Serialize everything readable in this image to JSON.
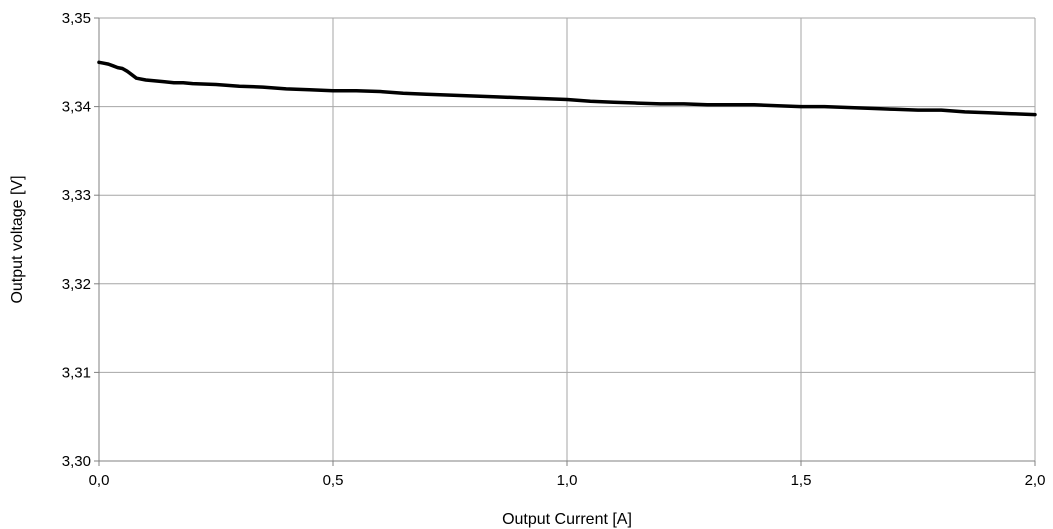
{
  "chart_data": {
    "type": "line",
    "title": "",
    "xlabel": "Output Current [A]",
    "ylabel": "Output voltage [V]",
    "xlim": [
      0.0,
      2.0
    ],
    "ylim": [
      3.3,
      3.35
    ],
    "x_ticks": [
      0.0,
      0.5,
      1.0,
      1.5,
      2.0
    ],
    "x_tick_labels": [
      "0,0",
      "0,5",
      "1,0",
      "1,5",
      "2,0"
    ],
    "y_ticks": [
      3.3,
      3.31,
      3.32,
      3.33,
      3.34,
      3.35
    ],
    "y_tick_labels": [
      "3,30",
      "3,31",
      "3,32",
      "3,33",
      "3,34",
      "3,35"
    ],
    "grid": true,
    "legend": "none",
    "series": [
      {
        "color": "#000000",
        "x": [
          0.0,
          0.01,
          0.02,
          0.03,
          0.04,
          0.05,
          0.06,
          0.07,
          0.08,
          0.1,
          0.12,
          0.14,
          0.16,
          0.18,
          0.2,
          0.25,
          0.3,
          0.35,
          0.4,
          0.45,
          0.5,
          0.55,
          0.6,
          0.65,
          0.7,
          0.75,
          0.8,
          0.85,
          0.9,
          0.95,
          1.0,
          1.05,
          1.1,
          1.15,
          1.2,
          1.25,
          1.3,
          1.35,
          1.4,
          1.45,
          1.5,
          1.55,
          1.6,
          1.65,
          1.7,
          1.75,
          1.8,
          1.85,
          1.9,
          1.95,
          2.0
        ],
        "y": [
          3.345,
          3.3449,
          3.3448,
          3.3446,
          3.3444,
          3.3443,
          3.344,
          3.3436,
          3.3432,
          3.343,
          3.3429,
          3.3428,
          3.3427,
          3.3427,
          3.3426,
          3.3425,
          3.3423,
          3.3422,
          3.342,
          3.3419,
          3.3418,
          3.3418,
          3.3417,
          3.3415,
          3.3414,
          3.3413,
          3.3412,
          3.3411,
          3.341,
          3.3409,
          3.3408,
          3.3406,
          3.3405,
          3.3404,
          3.3403,
          3.3403,
          3.3402,
          3.3402,
          3.3402,
          3.3401,
          3.34,
          3.34,
          3.3399,
          3.3398,
          3.3397,
          3.3396,
          3.3396,
          3.3394,
          3.3393,
          3.3392,
          3.3391
        ]
      }
    ]
  }
}
